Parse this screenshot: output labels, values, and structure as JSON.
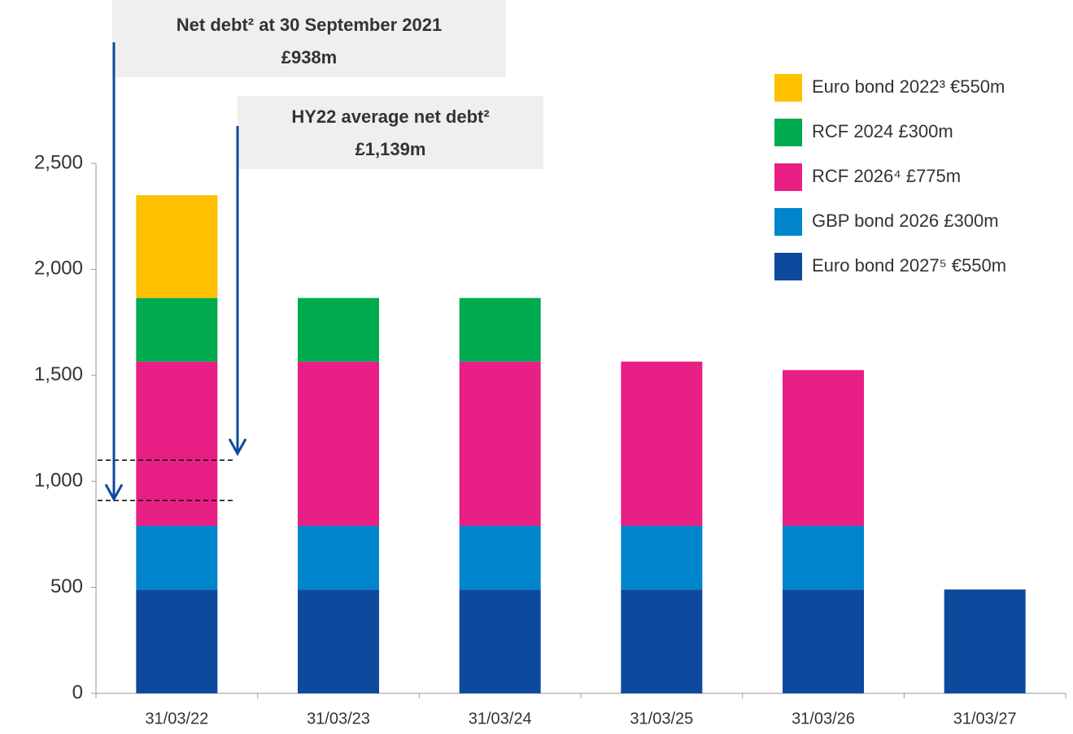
{
  "chart_data": {
    "type": "stacked_bar",
    "categories": [
      "31/03/22",
      "31/03/23",
      "31/03/24",
      "31/03/25",
      "31/03/26",
      "31/03/27"
    ],
    "series": [
      {
        "name": "Euro bond 2027⁵ €550m",
        "color": "#0d4a9e",
        "values": [
          490,
          490,
          490,
          490,
          490,
          490
        ]
      },
      {
        "name": "GBP bond 2026 £300m",
        "color": "#0085cc",
        "values": [
          300,
          300,
          300,
          300,
          300,
          null
        ]
      },
      {
        "name": "RCF 2026⁴ £775m",
        "color": "#e81f84",
        "values": [
          775,
          775,
          775,
          775,
          735,
          null
        ]
      },
      {
        "name": "RCF 2024 £300m",
        "color": "#00aa4f",
        "values": [
          300,
          300,
          300,
          null,
          null,
          null
        ]
      },
      {
        "name": "Euro bond 2022³ €550m",
        "color": "#ffc000",
        "values": [
          485,
          null,
          null,
          null,
          null,
          null
        ]
      }
    ],
    "ylim": [
      0,
      2500
    ],
    "yticks": [
      0,
      500,
      {
        "value": 1000,
        "label": "1,000"
      },
      {
        "value": 1500,
        "label": "1,500"
      },
      {
        "value": 2000,
        "label": "2,000"
      },
      {
        "value": 2500,
        "label": "2,500"
      }
    ],
    "annotations": [
      {
        "lines": [
          "Net debt² at 30 September 2021",
          "£938m"
        ],
        "value": 910
      },
      {
        "lines": [
          "HY22 average net debt²",
          "£1,139m"
        ],
        "value": 1100
      }
    ],
    "legend": "top-right"
  }
}
